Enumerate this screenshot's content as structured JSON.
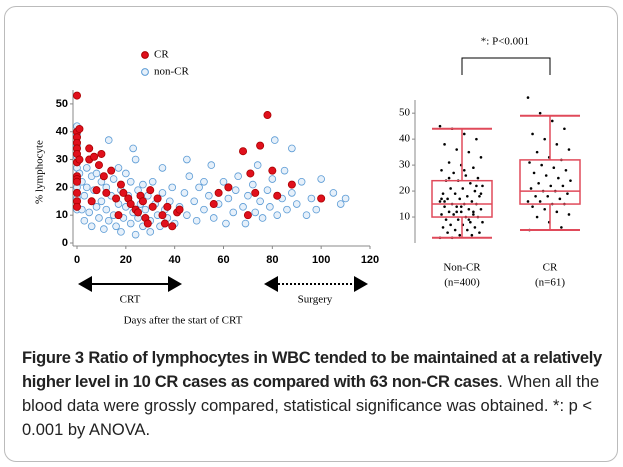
{
  "chart_data": [
    {
      "type": "scatter",
      "ylabel": "% lymphocyte",
      "xlabel": "Days after the start of CRT",
      "annotations": [
        "CRT",
        "Surgery"
      ],
      "xlim": [
        0,
        120
      ],
      "ylim": [
        0,
        55
      ],
      "xticks": [
        0,
        20,
        40,
        60,
        80,
        100,
        120
      ],
      "yticks": [
        0,
        10,
        20,
        30,
        40,
        50
      ],
      "series": [
        {
          "name": "non-CR",
          "color": "#5b9bd5",
          "x": [
            0,
            0,
            0,
            0,
            0,
            0,
            0,
            0,
            1,
            2,
            2,
            3,
            3,
            4,
            4,
            5,
            6,
            6,
            7,
            8,
            8,
            9,
            10,
            10,
            11,
            12,
            12,
            13,
            13,
            14,
            15,
            15,
            16,
            17,
            17,
            18,
            18,
            19,
            20,
            20,
            21,
            22,
            22,
            23,
            23,
            24,
            25,
            25,
            26,
            27,
            27,
            28,
            29,
            30,
            30,
            31,
            32,
            33,
            34,
            35,
            36,
            37,
            38,
            39,
            40,
            42,
            44,
            45,
            46,
            48,
            49,
            50,
            52,
            54,
            55,
            56,
            58,
            60,
            61,
            62,
            64,
            65,
            66,
            68,
            69,
            70,
            72,
            73,
            74,
            75,
            76,
            78,
            79,
            80,
            81,
            82,
            84,
            85,
            86,
            88,
            90,
            92,
            94,
            96,
            98,
            100,
            105,
            108,
            110,
            45,
            35,
            24,
            52,
            88
          ],
          "values": [
            42,
            39,
            35,
            31,
            27,
            20,
            16,
            12,
            25,
            22,
            12,
            17,
            8,
            27,
            20,
            11,
            24,
            6,
            19,
            13,
            25,
            9,
            22,
            15,
            5,
            20,
            12,
            37,
            8,
            17,
            23,
            10,
            6,
            27,
            14,
            19,
            4,
            9,
            25,
            13,
            17,
            7,
            22,
            11,
            34,
            3,
            19,
            9,
            14,
            21,
            6,
            12,
            17,
            8,
            4,
            22,
            14,
            10,
            6,
            18,
            12,
            9,
            15,
            20,
            7,
            13,
            18,
            10,
            24,
            15,
            8,
            20,
            12,
            17,
            28,
            9,
            14,
            22,
            7,
            16,
            11,
            19,
            24,
            13,
            7,
            17,
            21,
            11,
            28,
            15,
            9,
            19,
            13,
            23,
            37,
            10,
            16,
            26,
            12,
            18,
            14,
            22,
            10,
            16,
            12,
            23,
            18,
            14,
            16,
            30,
            27,
            30,
            22,
            34
          ]
        },
        {
          "name": "CR",
          "color": "#e0101c",
          "x": [
            0,
            0,
            0,
            0,
            0,
            0,
            0,
            0,
            0,
            0,
            0,
            0,
            0,
            1,
            1,
            5,
            5,
            7,
            9,
            10,
            11,
            12,
            14,
            16,
            17,
            18,
            19,
            21,
            22,
            24,
            25,
            26,
            27,
            28,
            29,
            30,
            31,
            33,
            35,
            36,
            37,
            39,
            41,
            42,
            56,
            58,
            62,
            68,
            71,
            73,
            75,
            78,
            80,
            82,
            88,
            100,
            70,
            6,
            8
          ],
          "values": [
            53,
            40,
            38,
            36,
            34,
            32,
            29,
            24,
            23,
            22,
            18,
            15,
            13,
            41,
            30,
            34,
            30,
            31,
            28,
            32,
            24,
            18,
            26,
            16,
            10,
            21,
            18,
            16,
            14,
            12,
            11,
            17,
            15,
            9,
            7,
            19,
            13,
            16,
            10,
            7,
            13,
            6,
            11,
            12,
            14,
            18,
            20,
            33,
            25,
            18,
            35,
            46,
            26,
            17,
            21,
            16,
            10,
            15,
            19
          ]
        }
      ]
    },
    {
      "type": "box",
      "annotation": "*: P<0.001",
      "categories": [
        "Non-CR",
        "CR"
      ],
      "n_labels": [
        "(n=400)",
        "(n=61)"
      ],
      "ylim": [
        0,
        57
      ],
      "yticks": [
        10,
        20,
        30,
        40,
        50
      ],
      "color": "#e04a5a",
      "boxes": [
        {
          "whislo": 2,
          "q1": 10,
          "med": 15,
          "q3": 24,
          "whishi": 44
        },
        {
          "whislo": 5,
          "q1": 15,
          "med": 20,
          "q3": 32,
          "whishi": 49
        }
      ],
      "points": [
        [
          45,
          44,
          42,
          40,
          38,
          36,
          35,
          33,
          31,
          30,
          29,
          28,
          27,
          26,
          25,
          24,
          24,
          23,
          22,
          21,
          21,
          20,
          19,
          19,
          18,
          18,
          17,
          17,
          16,
          16,
          15,
          15,
          15,
          14,
          14,
          13,
          13,
          12,
          12,
          12,
          11,
          11,
          10,
          10,
          9,
          9,
          8,
          8,
          7,
          7,
          6,
          6,
          5,
          5,
          4,
          4,
          3,
          3,
          2,
          2,
          28,
          22,
          16,
          12,
          9,
          19,
          25,
          14,
          11,
          17
        ],
        [
          56,
          50,
          47,
          44,
          42,
          40,
          38,
          36,
          35,
          33,
          32,
          31,
          30,
          29,
          28,
          27,
          26,
          25,
          24,
          23,
          22,
          22,
          21,
          20,
          20,
          19,
          18,
          18,
          17,
          16,
          16,
          15,
          15,
          14,
          13,
          12,
          11,
          10,
          8,
          6,
          5
        ]
      ]
    }
  ],
  "caption": {
    "label": "Figure 3",
    "title": "Ratio of lymphocytes in WBC tended to be maintained at a relatively higher level in 10 CR cases as compared with 63 non-CR cases",
    "text": ". When all the blood data were grossly compared, statistical significance was obtained. *: p < 0.001 by ANOVA."
  }
}
